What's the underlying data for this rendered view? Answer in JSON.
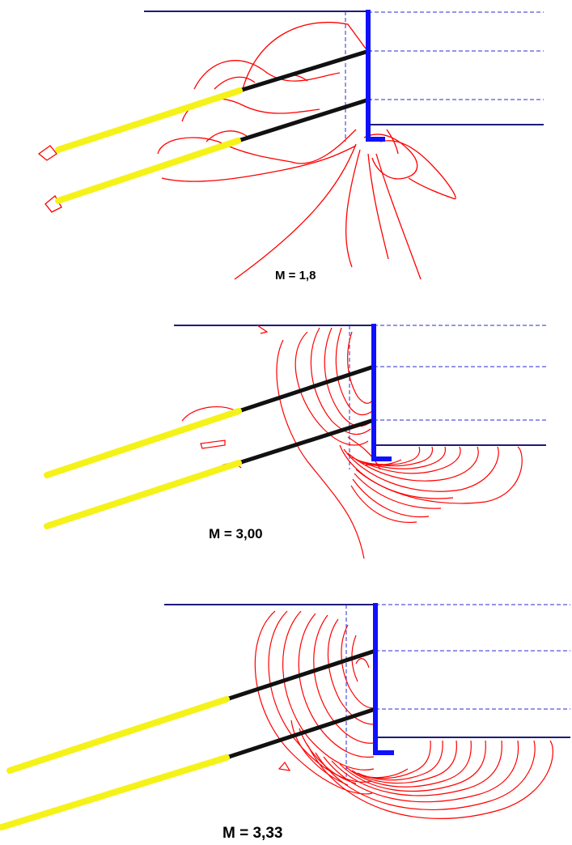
{
  "panels": [
    {
      "label": "M = 1,8"
    },
    {
      "label": "M = 3,00"
    },
    {
      "label": "M = 3,33"
    }
  ],
  "colors": {
    "ground_line": "#1b1b7a",
    "wall": "#1010ff",
    "anchor_free_length": "#111111",
    "anchor_grout": "#f5f21a",
    "contours": "#ff0000",
    "dashed": "#2b2bd0"
  }
}
